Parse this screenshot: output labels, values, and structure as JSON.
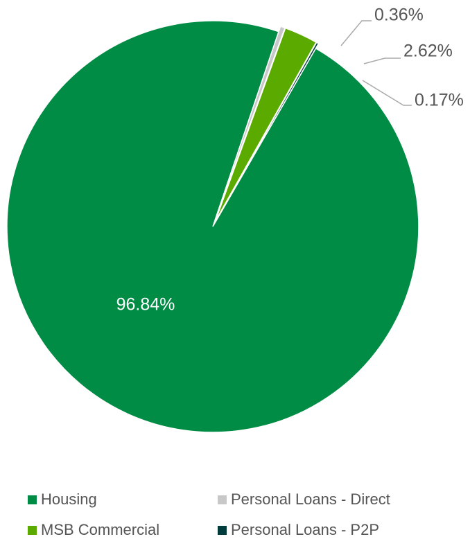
{
  "chart_data": {
    "type": "pie",
    "title": "",
    "slices": [
      {
        "label": "Housing",
        "value": 96.84,
        "display": "96.84%",
        "color": "#008C45"
      },
      {
        "label": "Personal Loans - Direct",
        "value": 0.36,
        "display": "0.36%",
        "color": "#C8C8C8"
      },
      {
        "label": "MSB Commercial",
        "value": 2.62,
        "display": "2.62%",
        "color": "#5BAA00"
      },
      {
        "label": "Personal Loans - P2P",
        "value": 0.17,
        "display": "0.17%",
        "color": "#003C3C"
      }
    ],
    "legend": {
      "position": "bottom",
      "items": [
        "Housing",
        "Personal Loans - Direct",
        "MSB Commercial",
        "Personal Loans - P2P"
      ]
    },
    "start_angle_deg": 30
  }
}
